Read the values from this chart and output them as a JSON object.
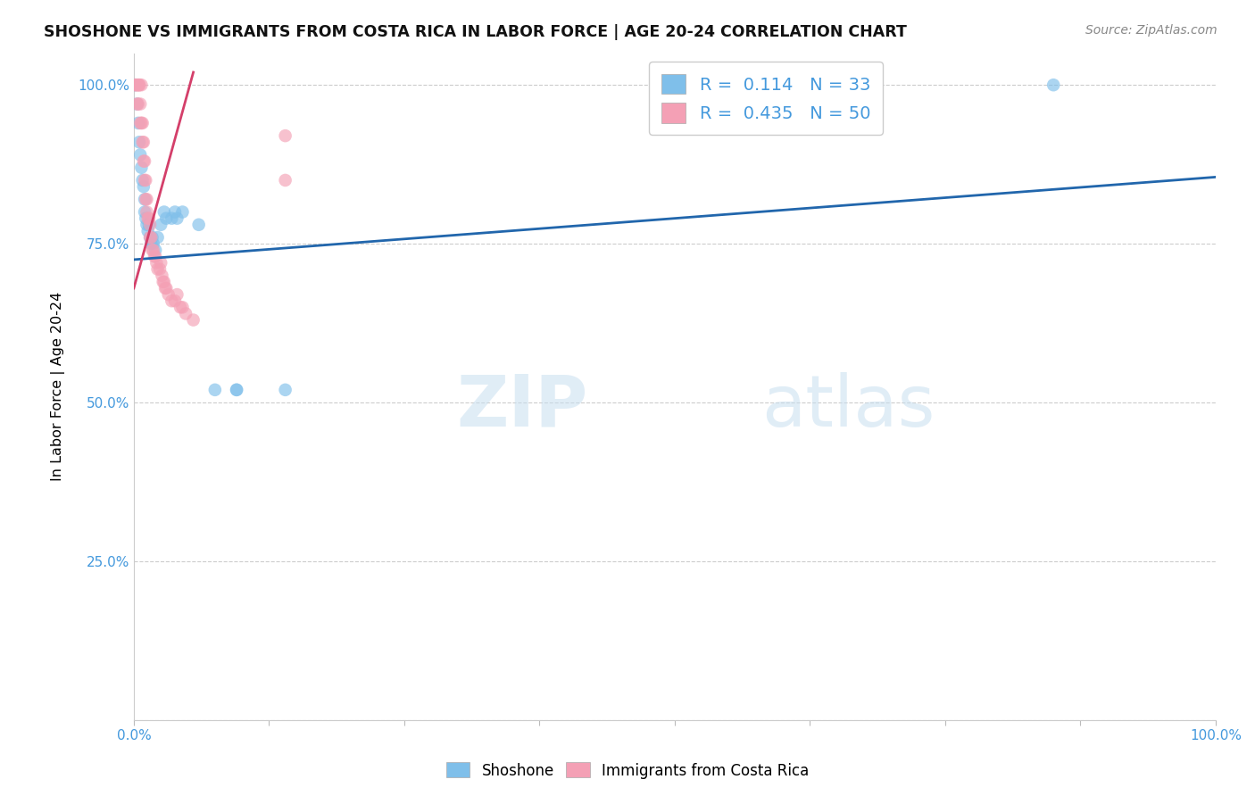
{
  "title": "SHOSHONE VS IMMIGRANTS FROM COSTA RICA IN LABOR FORCE | AGE 20-24 CORRELATION CHART",
  "source": "Source: ZipAtlas.com",
  "ylabel_label": "In Labor Force | Age 20-24",
  "legend_blue_r": "0.114",
  "legend_blue_n": "33",
  "legend_pink_r": "0.435",
  "legend_pink_n": "50",
  "blue_scatter_x": [
    0.001,
    0.003,
    0.004,
    0.005,
    0.006,
    0.007,
    0.008,
    0.009,
    0.01,
    0.01,
    0.011,
    0.012,
    0.013,
    0.014,
    0.015,
    0.016,
    0.017,
    0.018,
    0.02,
    0.022,
    0.025,
    0.028,
    0.03,
    0.035,
    0.038,
    0.04,
    0.045,
    0.06,
    0.075,
    0.095,
    0.095,
    0.14,
    0.85
  ],
  "blue_scatter_y": [
    1.0,
    0.97,
    0.94,
    0.91,
    0.89,
    0.87,
    0.85,
    0.84,
    0.82,
    0.8,
    0.79,
    0.78,
    0.77,
    0.78,
    0.76,
    0.75,
    0.76,
    0.75,
    0.74,
    0.76,
    0.78,
    0.8,
    0.79,
    0.79,
    0.8,
    0.79,
    0.8,
    0.78,
    0.52,
    0.52,
    0.52,
    0.52,
    1.0
  ],
  "pink_scatter_x": [
    0.001,
    0.002,
    0.003,
    0.003,
    0.004,
    0.004,
    0.005,
    0.005,
    0.006,
    0.006,
    0.007,
    0.007,
    0.008,
    0.008,
    0.009,
    0.009,
    0.01,
    0.01,
    0.011,
    0.011,
    0.012,
    0.012,
    0.013,
    0.014,
    0.015,
    0.015,
    0.016,
    0.017,
    0.018,
    0.019,
    0.02,
    0.021,
    0.022,
    0.024,
    0.025,
    0.026,
    0.027,
    0.028,
    0.029,
    0.03,
    0.032,
    0.035,
    0.038,
    0.04,
    0.043,
    0.045,
    0.048,
    0.055,
    0.14,
    0.14
  ],
  "pink_scatter_y": [
    1.0,
    1.0,
    1.0,
    0.97,
    1.0,
    0.97,
    1.0,
    1.0,
    0.97,
    0.94,
    1.0,
    0.94,
    0.94,
    0.91,
    0.91,
    0.88,
    0.88,
    0.85,
    0.85,
    0.82,
    0.82,
    0.8,
    0.79,
    0.79,
    0.78,
    0.76,
    0.76,
    0.74,
    0.74,
    0.73,
    0.73,
    0.72,
    0.71,
    0.71,
    0.72,
    0.7,
    0.69,
    0.69,
    0.68,
    0.68,
    0.67,
    0.66,
    0.66,
    0.67,
    0.65,
    0.65,
    0.64,
    0.63,
    0.92,
    0.85
  ],
  "blue_line_x0": 0.0,
  "blue_line_x1": 1.0,
  "blue_line_y0": 0.725,
  "blue_line_y1": 0.855,
  "pink_line_x0": 0.0,
  "pink_line_x1": 0.055,
  "pink_line_y0": 0.68,
  "pink_line_y1": 1.02,
  "watermark_part1": "ZIP",
  "watermark_part2": "atlas",
  "background_color": "#ffffff",
  "blue_color": "#7fbfea",
  "pink_color": "#f4a0b5",
  "blue_line_color": "#2166ac",
  "pink_line_color": "#d43f6a",
  "title_fontsize": 12.5,
  "source_fontsize": 10,
  "tick_color": "#4499dd",
  "ylabel_color": "#000000",
  "xlim": [
    0.0,
    1.0
  ],
  "ylim": [
    0.0,
    1.05
  ],
  "yticks": [
    0.0,
    0.25,
    0.5,
    0.75,
    1.0
  ],
  "ytick_labels": [
    "",
    "25.0%",
    "50.0%",
    "75.0%",
    "100.0%"
  ],
  "xtick_labels_shown": [
    "0.0%",
    "100.0%"
  ],
  "xtick_positions_shown": [
    0.0,
    1.0
  ]
}
